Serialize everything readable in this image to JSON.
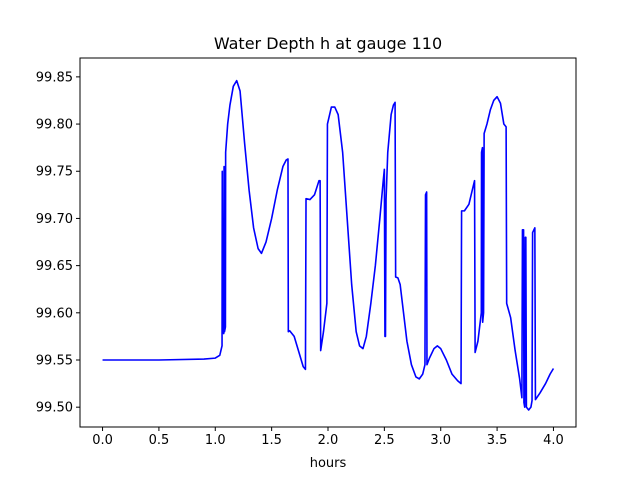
{
  "chart_data": {
    "type": "line",
    "title": "Water Depth h at gauge 110",
    "xlabel": "hours",
    "ylabel": "",
    "xlim": [
      -0.2,
      4.2
    ],
    "ylim": [
      99.479,
      99.87
    ],
    "xticks": [
      0.0,
      0.5,
      1.0,
      1.5,
      2.0,
      2.5,
      3.0,
      3.5,
      4.0
    ],
    "xtick_labels": [
      "0.0",
      "0.5",
      "1.0",
      "1.5",
      "2.0",
      "2.5",
      "3.0",
      "3.5",
      "4.0"
    ],
    "yticks": [
      99.5,
      99.55,
      99.6,
      99.65,
      99.7,
      99.75,
      99.8,
      99.85
    ],
    "ytick_labels": [
      "99.50",
      "99.55",
      "99.60",
      "99.65",
      "99.70",
      "99.75",
      "99.80",
      "99.85"
    ],
    "grid": false,
    "legend": "none",
    "series": [
      {
        "color": "#0000ff",
        "points": [
          [
            0.0,
            99.55
          ],
          [
            0.5,
            99.55
          ],
          [
            0.9,
            99.551
          ],
          [
            1.0,
            99.552
          ],
          [
            1.04,
            99.555
          ],
          [
            1.06,
            99.565
          ],
          [
            1.062,
            99.75
          ],
          [
            1.065,
            99.58
          ],
          [
            1.075,
            99.578
          ],
          [
            1.078,
            99.755
          ],
          [
            1.082,
            99.58
          ],
          [
            1.09,
            99.585
          ],
          [
            1.092,
            99.77
          ],
          [
            1.11,
            99.8
          ],
          [
            1.13,
            99.82
          ],
          [
            1.16,
            99.84
          ],
          [
            1.19,
            99.846
          ],
          [
            1.22,
            99.835
          ],
          [
            1.26,
            99.78
          ],
          [
            1.3,
            99.73
          ],
          [
            1.34,
            99.69
          ],
          [
            1.38,
            99.668
          ],
          [
            1.41,
            99.663
          ],
          [
            1.45,
            99.675
          ],
          [
            1.5,
            99.7
          ],
          [
            1.55,
            99.73
          ],
          [
            1.6,
            99.755
          ],
          [
            1.63,
            99.762
          ],
          [
            1.645,
            99.763
          ],
          [
            1.648,
            99.58
          ],
          [
            1.66,
            99.581
          ],
          [
            1.7,
            99.575
          ],
          [
            1.75,
            99.555
          ],
          [
            1.78,
            99.543
          ],
          [
            1.8,
            99.54
          ],
          [
            1.805,
            99.721
          ],
          [
            1.84,
            99.72
          ],
          [
            1.88,
            99.725
          ],
          [
            1.92,
            99.74
          ],
          [
            1.93,
            99.74
          ],
          [
            1.935,
            99.56
          ],
          [
            1.96,
            99.58
          ],
          [
            1.98,
            99.6
          ],
          [
            1.99,
            99.61
          ],
          [
            1.995,
            99.8
          ],
          [
            2.03,
            99.818
          ],
          [
            2.06,
            99.818
          ],
          [
            2.09,
            99.81
          ],
          [
            2.13,
            99.77
          ],
          [
            2.17,
            99.7
          ],
          [
            2.21,
            99.63
          ],
          [
            2.25,
            99.58
          ],
          [
            2.28,
            99.565
          ],
          [
            2.31,
            99.562
          ],
          [
            2.34,
            99.575
          ],
          [
            2.38,
            99.61
          ],
          [
            2.42,
            99.65
          ],
          [
            2.46,
            99.7
          ],
          [
            2.49,
            99.74
          ],
          [
            2.5,
            99.752
          ],
          [
            2.505,
            99.575
          ],
          [
            2.51,
            99.575
          ],
          [
            2.515,
            99.72
          ],
          [
            2.53,
            99.77
          ],
          [
            2.56,
            99.81
          ],
          [
            2.58,
            99.82
          ],
          [
            2.595,
            99.823
          ],
          [
            2.6,
            99.638
          ],
          [
            2.62,
            99.637
          ],
          [
            2.64,
            99.63
          ],
          [
            2.67,
            99.6
          ],
          [
            2.7,
            99.57
          ],
          [
            2.74,
            99.545
          ],
          [
            2.78,
            99.532
          ],
          [
            2.81,
            99.53
          ],
          [
            2.84,
            99.535
          ],
          [
            2.86,
            99.545
          ],
          [
            2.865,
            99.725
          ],
          [
            2.875,
            99.728
          ],
          [
            2.878,
            99.545
          ],
          [
            2.9,
            99.552
          ],
          [
            2.94,
            99.562
          ],
          [
            2.97,
            99.565
          ],
          [
            3.0,
            99.562
          ],
          [
            3.05,
            99.55
          ],
          [
            3.1,
            99.535
          ],
          [
            3.15,
            99.528
          ],
          [
            3.18,
            99.525
          ],
          [
            3.185,
            99.708
          ],
          [
            3.21,
            99.708
          ],
          [
            3.25,
            99.715
          ],
          [
            3.28,
            99.73
          ],
          [
            3.3,
            99.74
          ],
          [
            3.305,
            99.558
          ],
          [
            3.33,
            99.57
          ],
          [
            3.35,
            99.59
          ],
          [
            3.36,
            99.6
          ],
          [
            3.362,
            99.77
          ],
          [
            3.37,
            99.775
          ],
          [
            3.372,
            99.59
          ],
          [
            3.38,
            99.6
          ],
          [
            3.385,
            99.79
          ],
          [
            3.41,
            99.8
          ],
          [
            3.44,
            99.815
          ],
          [
            3.47,
            99.825
          ],
          [
            3.5,
            99.829
          ],
          [
            3.53,
            99.822
          ],
          [
            3.56,
            99.8
          ],
          [
            3.58,
            99.797
          ],
          [
            3.585,
            99.61
          ],
          [
            3.62,
            99.595
          ],
          [
            3.66,
            99.56
          ],
          [
            3.7,
            99.53
          ],
          [
            3.72,
            99.51
          ],
          [
            3.725,
            99.688
          ],
          [
            3.735,
            99.688
          ],
          [
            3.738,
            99.505
          ],
          [
            3.745,
            99.5
          ],
          [
            3.75,
            99.68
          ],
          [
            3.755,
            99.68
          ],
          [
            3.76,
            99.5
          ],
          [
            3.78,
            99.497
          ],
          [
            3.8,
            99.5
          ],
          [
            3.81,
            99.507
          ],
          [
            3.815,
            99.685
          ],
          [
            3.835,
            99.69
          ],
          [
            3.84,
            99.508
          ],
          [
            3.88,
            99.515
          ],
          [
            3.93,
            99.525
          ],
          [
            3.97,
            99.535
          ],
          [
            4.0,
            99.541
          ]
        ]
      }
    ]
  }
}
